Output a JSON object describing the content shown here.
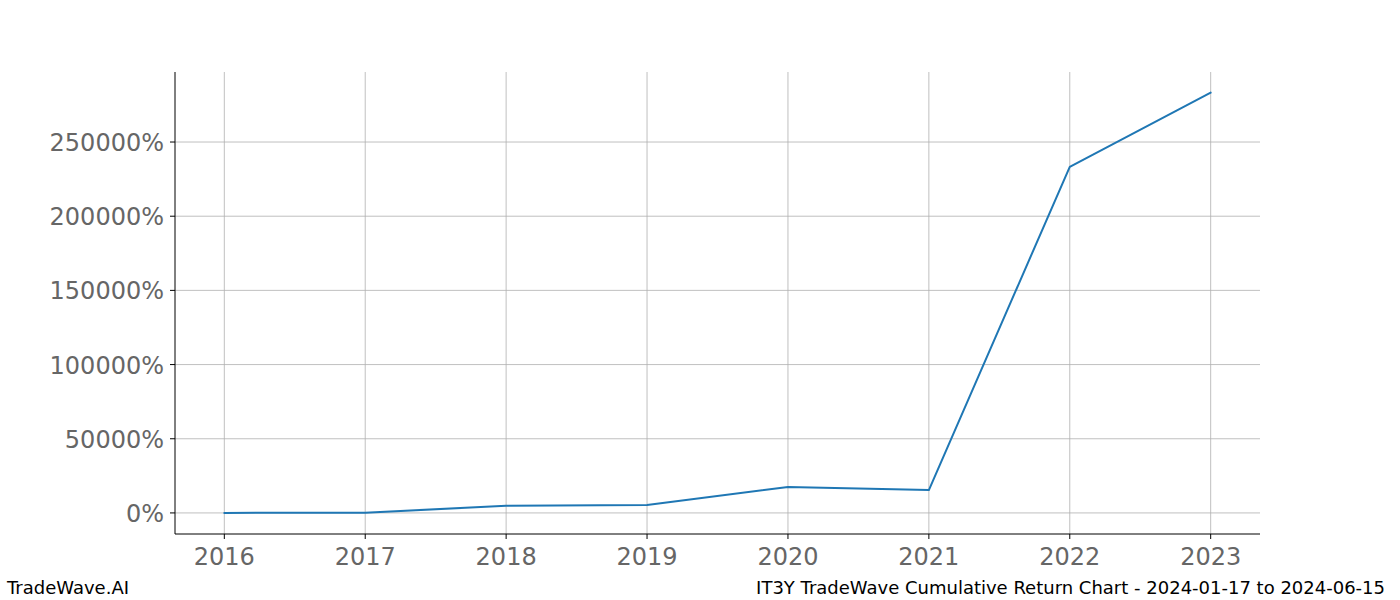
{
  "chart_data": {
    "type": "line",
    "title": "IT3Y TradeWave Cumulative Return Chart - 2024-01-17 to 2024-06-15",
    "subtitle": "TradeWave.AI",
    "x": [
      2016,
      2017,
      2018,
      2019,
      2020,
      2021,
      2022,
      2023
    ],
    "series": [
      {
        "name": "IT3Y",
        "color": "#1f77b4",
        "values": [
          0,
          200,
          4800,
          5400,
          17500,
          15400,
          233300,
          283300
        ]
      }
    ],
    "xlim": [
      2015.65,
      2023.35
    ],
    "xticks": [
      2016,
      2017,
      2018,
      2019,
      2020,
      2021,
      2022,
      2023
    ],
    "ylim": [
      -14200,
      297200
    ],
    "yticks": [
      {
        "value": 0,
        "label": "0%"
      },
      {
        "value": 50000,
        "label": "50000%"
      },
      {
        "value": 100000,
        "label": "100000%"
      },
      {
        "value": 150000,
        "label": "150000%"
      },
      {
        "value": 200000,
        "label": "200000%"
      },
      {
        "value": 250000,
        "label": "250000%"
      }
    ],
    "grid": true
  }
}
